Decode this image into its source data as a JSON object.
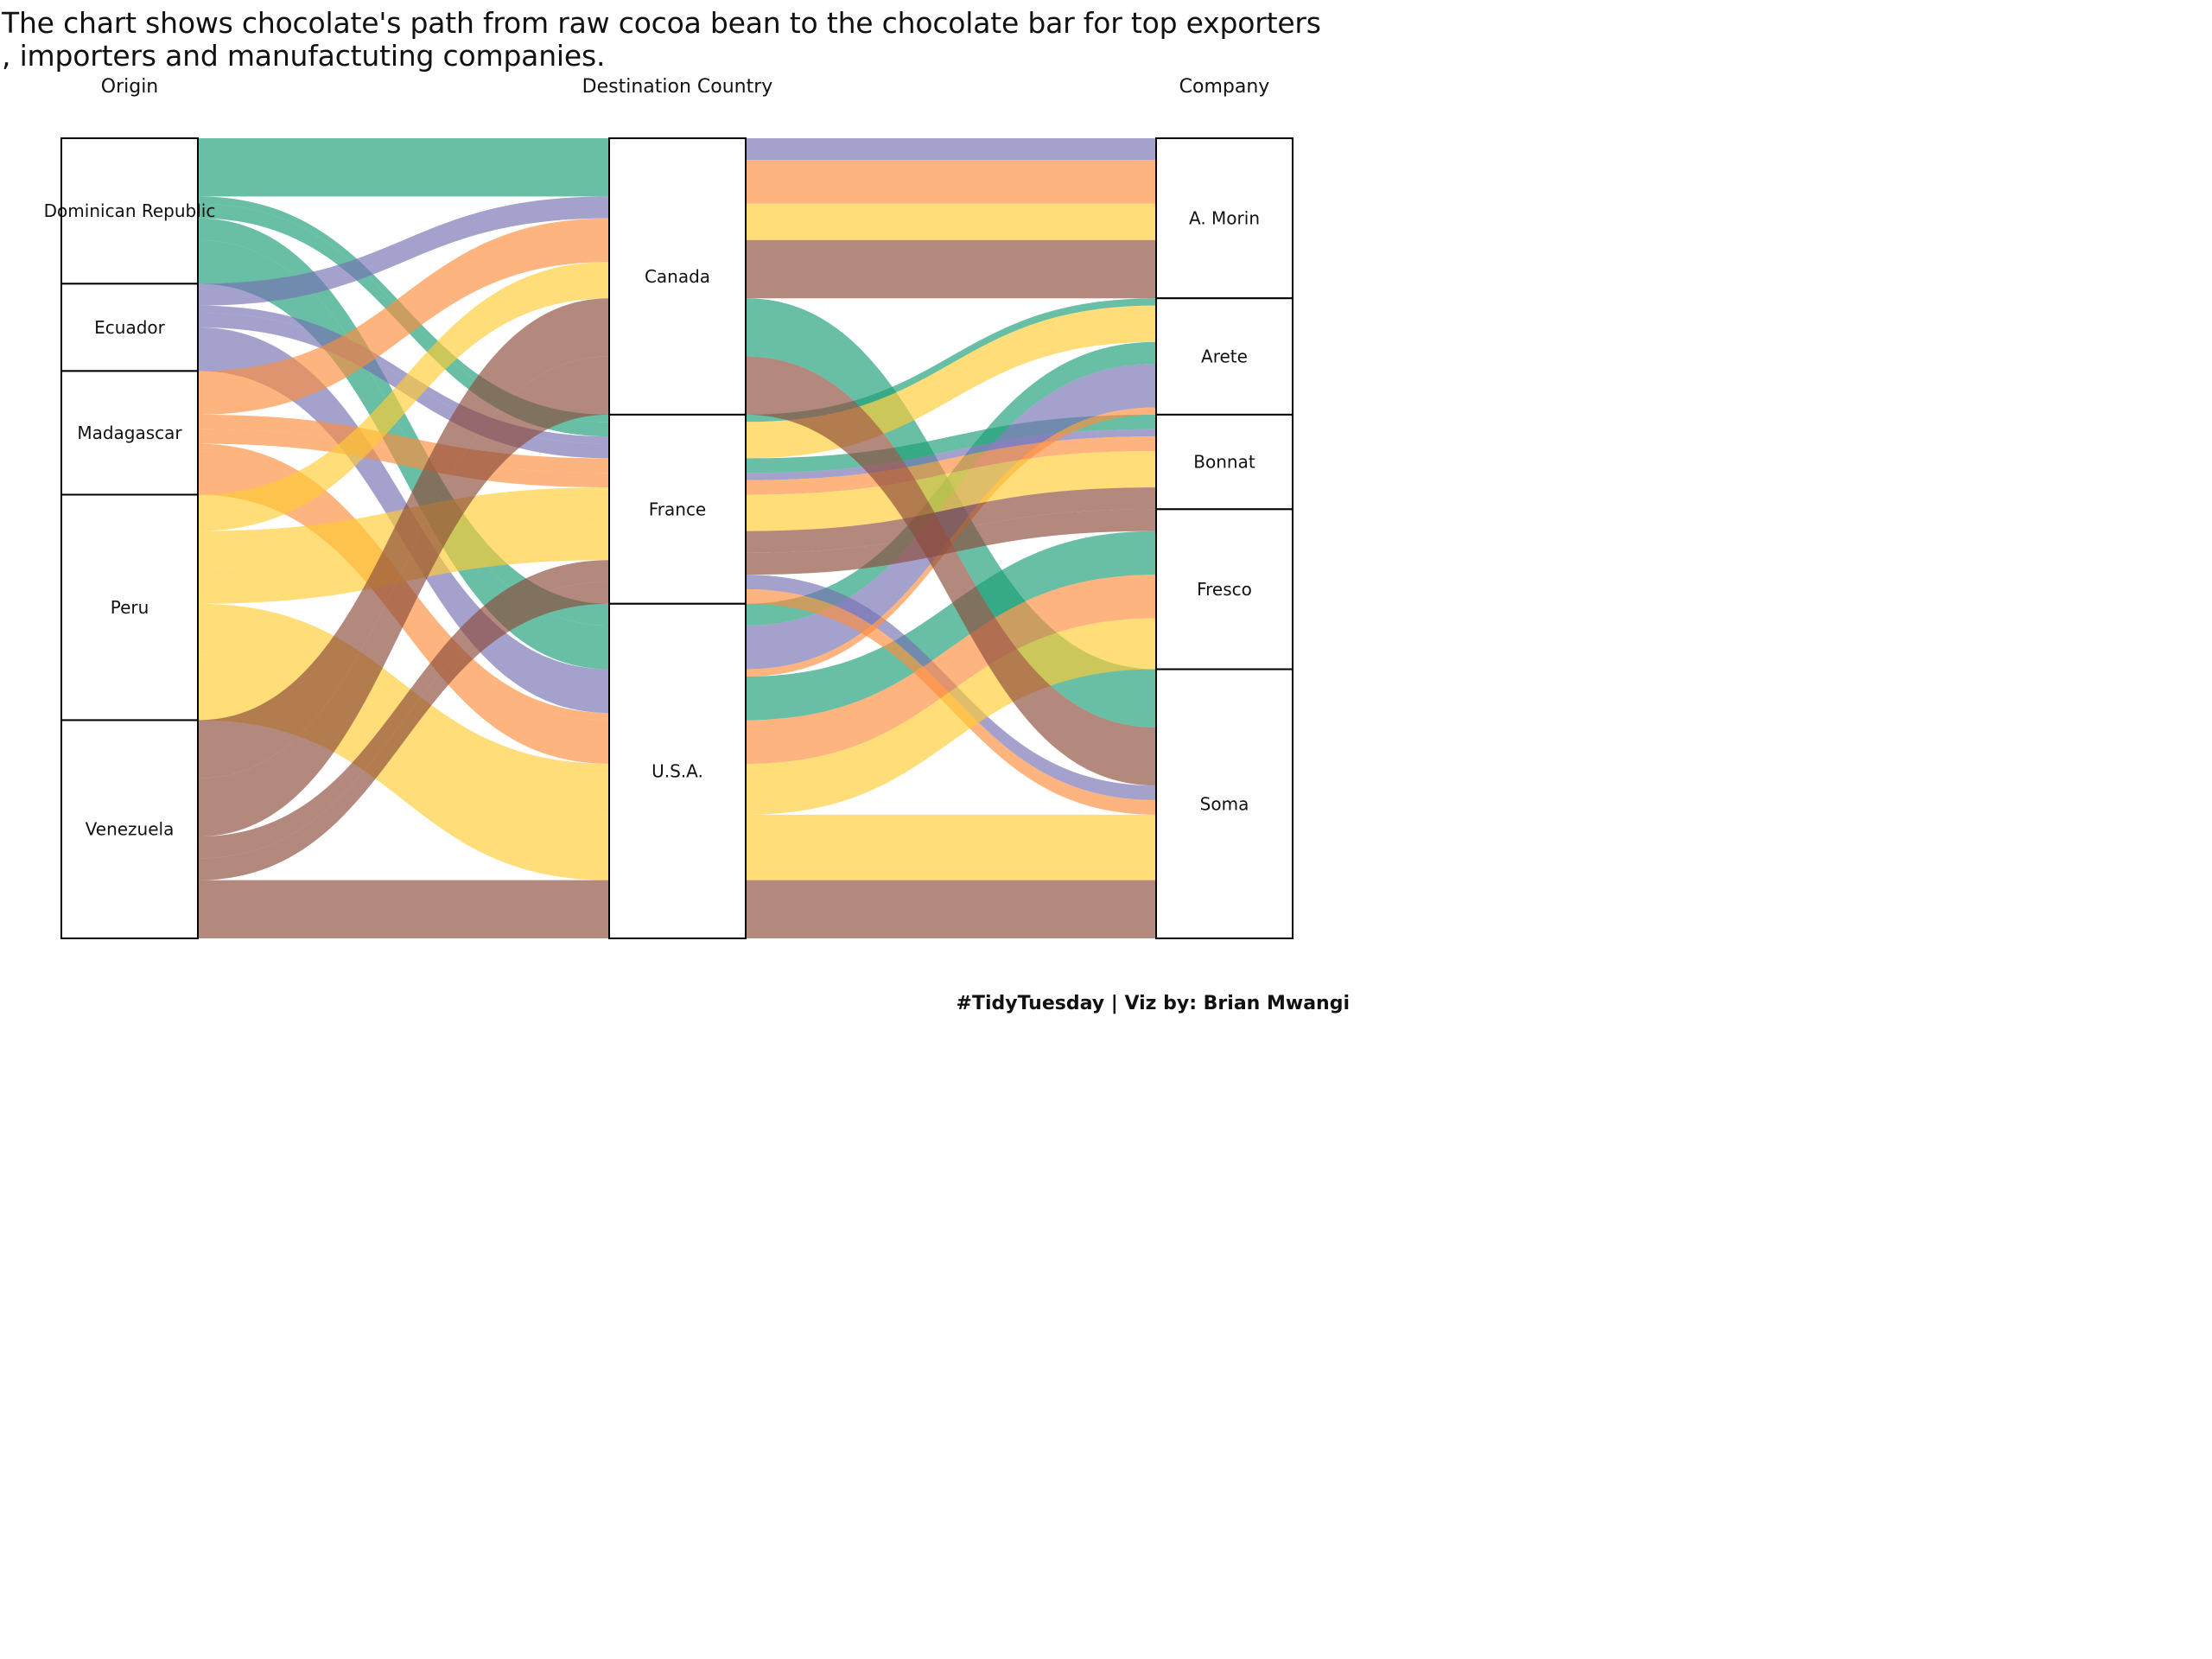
{
  "title": "The chart shows chocolate's path from raw cocoa bean to the chocolate bar for top exporters\n, importers and manufactuting companies.",
  "caption": "#TidyTuesday | Viz by: Brian Mwangi",
  "palette": {
    "Dominican Republic": "#1b9e77",
    "Ecuador": "#7570b3",
    "Madagascar": "#fc8d3c",
    "Peru": "#ffcc33",
    "Venezuela": "#8b4a3a"
  },
  "chart_data": {
    "type": "alluvial",
    "axes": [
      "Origin",
      "Destination Country",
      "Company"
    ],
    "strata": {
      "Origin": [
        "Dominican Republic",
        "Ecuador",
        "Madagascar",
        "Peru",
        "Venezuela"
      ],
      "Destination Country": [
        "Canada",
        "France",
        "U.S.A."
      ],
      "Company": [
        "A. Morin",
        "Arete",
        "Bonnat",
        "Fresco",
        "Soma"
      ]
    },
    "flows": [
      {
        "origin": "Dominican Republic",
        "destination": "Canada",
        "company": "Soma",
        "value": 8
      },
      {
        "origin": "Dominican Republic",
        "destination": "France",
        "company": "Bonnat",
        "value": 2
      },
      {
        "origin": "Dominican Republic",
        "destination": "France",
        "company": "Arete",
        "value": 1
      },
      {
        "origin": "Dominican Republic",
        "destination": "U.S.A.",
        "company": "Fresco",
        "value": 6
      },
      {
        "origin": "Dominican Republic",
        "destination": "U.S.A.",
        "company": "Arete",
        "value": 3
      },
      {
        "origin": "Dominican Republic",
        "destination": "U.S.A.",
        "company": "Soma",
        "value": 0
      },
      {
        "origin": "Ecuador",
        "destination": "Canada",
        "company": "A. Morin",
        "value": 3
      },
      {
        "origin": "Ecuador",
        "destination": "Canada",
        "company": "Soma",
        "value": 0
      },
      {
        "origin": "Ecuador",
        "destination": "France",
        "company": "Bonnat",
        "value": 1
      },
      {
        "origin": "Ecuador",
        "destination": "France",
        "company": "Soma",
        "value": 2
      },
      {
        "origin": "Ecuador",
        "destination": "U.S.A.",
        "company": "Arete",
        "value": 6
      },
      {
        "origin": "Madagascar",
        "destination": "Canada",
        "company": "A. Morin",
        "value": 6
      },
      {
        "origin": "Madagascar",
        "destination": "Canada",
        "company": "Soma",
        "value": 0
      },
      {
        "origin": "Madagascar",
        "destination": "France",
        "company": "Bonnat",
        "value": 2
      },
      {
        "origin": "Madagascar",
        "destination": "France",
        "company": "Soma",
        "value": 2
      },
      {
        "origin": "Madagascar",
        "destination": "U.S.A.",
        "company": "Arete",
        "value": 1
      },
      {
        "origin": "Madagascar",
        "destination": "U.S.A.",
        "company": "Fresco",
        "value": 6
      },
      {
        "origin": "Peru",
        "destination": "Canada",
        "company": "A. Morin",
        "value": 5
      },
      {
        "origin": "Peru",
        "destination": "Canada",
        "company": "Soma",
        "value": 0
      },
      {
        "origin": "Peru",
        "destination": "France",
        "company": "Arete",
        "value": 5
      },
      {
        "origin": "Peru",
        "destination": "France",
        "company": "Bonnat",
        "value": 5
      },
      {
        "origin": "Peru",
        "destination": "U.S.A.",
        "company": "Fresco",
        "value": 7
      },
      {
        "origin": "Peru",
        "destination": "U.S.A.",
        "company": "Soma",
        "value": 9
      },
      {
        "origin": "Venezuela",
        "destination": "Canada",
        "company": "A. Morin",
        "value": 8
      },
      {
        "origin": "Venezuela",
        "destination": "Canada",
        "company": "Soma",
        "value": 8
      },
      {
        "origin": "Venezuela",
        "destination": "France",
        "company": "Bonnat",
        "value": 3
      },
      {
        "origin": "Venezuela",
        "destination": "France",
        "company": "Fresco",
        "value": 3
      },
      {
        "origin": "Venezuela",
        "destination": "U.S.A.",
        "company": "Fresco",
        "value": 0
      },
      {
        "origin": "Venezuela",
        "destination": "U.S.A.",
        "company": "Soma",
        "value": 8
      },
      {
        "origin": "Venezuela",
        "destination": "U.S.A.",
        "company": "A. Morin",
        "value": 0
      }
    ]
  }
}
